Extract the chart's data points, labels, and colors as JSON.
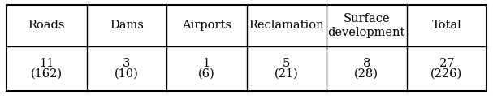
{
  "columns": [
    "Roads",
    "Dams",
    "Airports",
    "Reclamation",
    "Surface\ndevelopment",
    "Total"
  ],
  "row1": [
    "11",
    "3",
    "1",
    "5",
    "8",
    "27"
  ],
  "row2": [
    "(162)",
    "(10)",
    "(6)",
    "(21)",
    "(28)",
    "(226)"
  ],
  "bg_color": "#ffffff",
  "border_color": "#000000",
  "font_size": 10.5,
  "header_font_size": 10.5,
  "fig_width": 6.07,
  "fig_height": 1.18,
  "dpi": 100
}
